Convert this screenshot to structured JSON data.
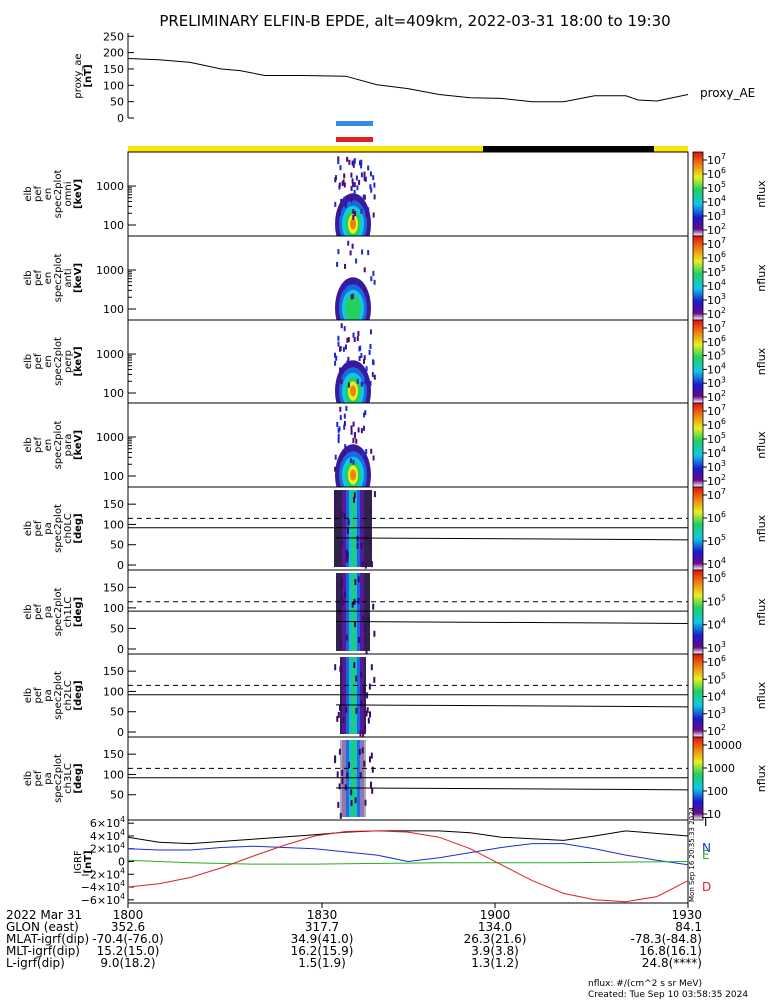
{
  "title": "PRELIMINARY ELFIN-B EPDE, alt=409km, 2022-03-31 18:00 to 19:30",
  "colors": {
    "blue_bar": "#2f8fe8",
    "red_bar": "#e02020",
    "yellow": "#ffe600",
    "black": "#000000"
  },
  "chart_data": [
    {
      "type": "line",
      "ylabel": [
        "proxy_ae",
        "[nT]"
      ],
      "yticks": [
        "250",
        "200",
        "150",
        "100",
        "50",
        "0"
      ],
      "ylim": [
        0,
        260
      ],
      "series": [
        {
          "name": "proxy_AE",
          "x": [
            0,
            5,
            10,
            15,
            18,
            22,
            28,
            35,
            40,
            45,
            50,
            55,
            60,
            65,
            70,
            75,
            80,
            82,
            85,
            90
          ],
          "y": [
            182,
            178,
            170,
            150,
            145,
            130,
            130,
            128,
            102,
            90,
            72,
            62,
            60,
            50,
            50,
            68,
            68,
            55,
            52,
            72
          ]
        }
      ]
    },
    {
      "type": "heatmap",
      "ylabel": [
        "elb",
        "pef",
        "en",
        "spec2plot",
        "omni",
        "[keV]"
      ],
      "yticks": [
        "1000",
        "100"
      ],
      "cbar_ticks": [
        "10^7",
        "10^6",
        "10^5",
        "10^4",
        "10^3",
        "10^2"
      ],
      "cbar_label": "nflux"
    },
    {
      "type": "heatmap",
      "ylabel": [
        "elb",
        "pef",
        "en",
        "spec2plot",
        "anti",
        "[keV]"
      ],
      "yticks": [
        "1000",
        "100"
      ],
      "cbar_ticks": [
        "10^7",
        "10^6",
        "10^5",
        "10^4",
        "10^3",
        "10^2"
      ],
      "cbar_label": "nflux"
    },
    {
      "type": "heatmap",
      "ylabel": [
        "elb",
        "pef",
        "en",
        "spec2plot",
        "perp",
        "[keV]"
      ],
      "yticks": [
        "1000",
        "100"
      ],
      "cbar_ticks": [
        "10^7",
        "10^6",
        "10^5",
        "10^4",
        "10^3",
        "10^2"
      ],
      "cbar_label": "nflux"
    },
    {
      "type": "heatmap",
      "ylabel": [
        "elb",
        "pef",
        "en",
        "spec2plot",
        "para",
        "[keV]"
      ],
      "yticks": [
        "1000",
        "100"
      ],
      "cbar_ticks": [
        "10^7",
        "10^6",
        "10^5",
        "10^4",
        "10^3",
        "10^2"
      ],
      "cbar_label": "nflux"
    },
    {
      "type": "heatmap",
      "ylabel": [
        "elb",
        "pef",
        "pa",
        "spec2plot",
        "ch0LC",
        "[deg]"
      ],
      "yticks": [
        "150",
        "100",
        "50",
        "0"
      ],
      "cbar_ticks": [
        "10^7",
        "10^6",
        "10^5",
        "10^4"
      ],
      "cbar_label": "nflux"
    },
    {
      "type": "heatmap",
      "ylabel": [
        "elb",
        "pef",
        "pa",
        "spec2plot",
        "ch1LC",
        "[deg]"
      ],
      "yticks": [
        "150",
        "100",
        "50",
        "0"
      ],
      "cbar_ticks": [
        "10^6",
        "10^5",
        "10^4",
        "10^3"
      ],
      "cbar_label": "nflux"
    },
    {
      "type": "heatmap",
      "ylabel": [
        "elb",
        "pef",
        "pa",
        "spec2plot",
        "ch2LC",
        "[deg]"
      ],
      "yticks": [
        "150",
        "100",
        "50",
        "0"
      ],
      "cbar_ticks": [
        "10^6",
        "10^5",
        "10^4",
        "10^3",
        "10^2"
      ],
      "cbar_label": "nflux"
    },
    {
      "type": "heatmap",
      "ylabel": [
        "elb",
        "pef",
        "pa",
        "spec2plot",
        "ch3LC",
        "[deg]"
      ],
      "yticks": [
        "150",
        "100",
        "50"
      ],
      "cbar_ticks": [
        "10000",
        "1000",
        "100",
        "10"
      ],
      "cbar_label": "nflux"
    },
    {
      "type": "line",
      "ylabel": [
        "IGRF",
        "[nT]"
      ],
      "yticks": [
        "6×10^4",
        "4×10^4",
        "2×10^4",
        "0",
        "−2×10^4",
        "−4×10^4",
        "−6×10^4"
      ],
      "ylim": [
        -65000,
        65000
      ],
      "series": [
        {
          "name": "T",
          "color": "#000000",
          "x": [
            0,
            5,
            10,
            20,
            30,
            35,
            40,
            50,
            55,
            60,
            70,
            75,
            80,
            90
          ],
          "y": [
            38000,
            30000,
            28000,
            35000,
            42000,
            46000,
            48000,
            48000,
            45000,
            38000,
            33000,
            40000,
            48000,
            40000
          ]
        },
        {
          "name": "N",
          "color": "#1a2fd0",
          "x": [
            0,
            5,
            10,
            15,
            20,
            30,
            40,
            45,
            50,
            55,
            60,
            65,
            70,
            75,
            80,
            85,
            90
          ],
          "y": [
            20000,
            18000,
            18000,
            22000,
            24000,
            20000,
            10000,
            0,
            6000,
            14000,
            22000,
            28000,
            28000,
            20000,
            10000,
            2000,
            -5000
          ]
        },
        {
          "name": "E",
          "color": "#22b022",
          "x": [
            0,
            10,
            20,
            30,
            40,
            50,
            60,
            70,
            80,
            90
          ],
          "y": [
            2000,
            -2000,
            -4000,
            -4000,
            -3000,
            -2000,
            -2000,
            -2000,
            -1000,
            0
          ]
        },
        {
          "name": "D",
          "color": "#e02020",
          "x": [
            0,
            5,
            10,
            15,
            20,
            25,
            30,
            35,
            40,
            45,
            50,
            55,
            60,
            65,
            70,
            75,
            80,
            85,
            90
          ],
          "y": [
            -40000,
            -35000,
            -25000,
            -10000,
            8000,
            25000,
            40000,
            47000,
            48000,
            46000,
            38000,
            20000,
            -5000,
            -30000,
            -50000,
            -60000,
            -63000,
            -55000,
            -30000
          ]
        }
      ]
    }
  ],
  "legend_labels": {
    "ae": "proxy_AE",
    "T": "T",
    "N": "N",
    "E": "E",
    "D": "D"
  },
  "timestamp_vertical": "Mon Sep 16 20:35:33 2024",
  "xaxis": {
    "rows": [
      {
        "label": "2022 Mar 31",
        "values": [
          "1800",
          "1830",
          "1900",
          "1930"
        ]
      },
      {
        "label": "GLON (east)",
        "values": [
          "352.6",
          "317.7",
          "134.0",
          "84.1"
        ]
      },
      {
        "label": "MLAT-igrf(dip)",
        "values": [
          "-70.4(-76.0)",
          "34.9(41.0)",
          "26.3(21.6)",
          "-78.3(-84.8)"
        ]
      },
      {
        "label": "MLT-igrf(dip)",
        "values": [
          "15.2(15.0)",
          "16.2(15.9)",
          "3.9(3.8)",
          "16.8(16.1)"
        ]
      },
      {
        "label": "L-igrf(dip)",
        "values": [
          "9.0(18.2)",
          "1.5(1.9)",
          "1.3(1.2)",
          "24.8(****)"
        ]
      }
    ]
  },
  "footer": {
    "units": "nflux: #/(cm^2 s sr MeV)",
    "created": "Created: Tue Sep 10 03:58:35 2024"
  }
}
